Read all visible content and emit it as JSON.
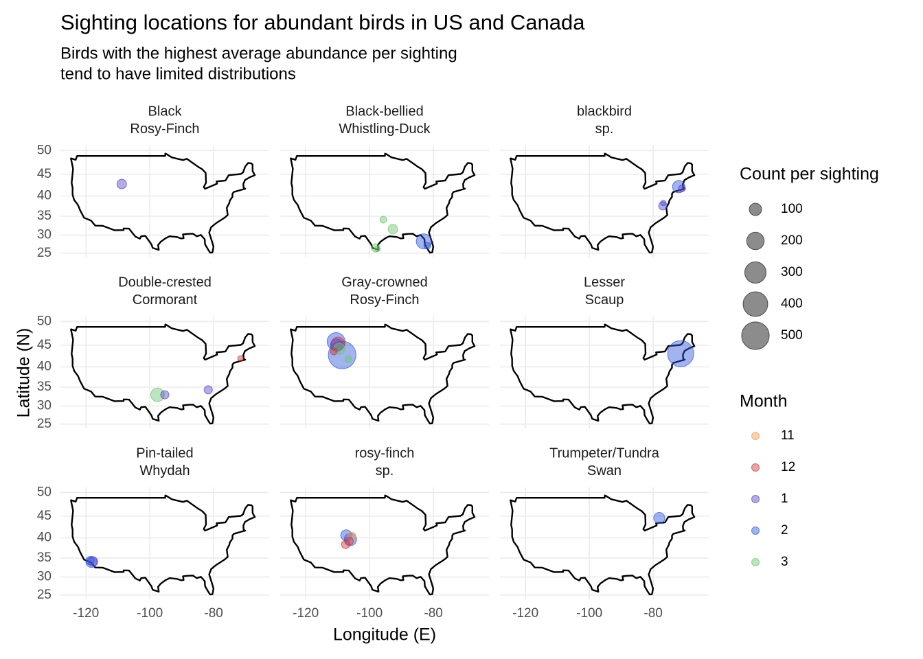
{
  "chart_data": {
    "type": "scatter",
    "title": "Sighting locations for abundant birds in US and Canada",
    "subtitle": [
      "Birds with the highest average abundance per sighting",
      "tend to have limited distributions"
    ],
    "x_label": "Longitude (E)",
    "y_label": "Latitude (N)",
    "projection": "mercator",
    "xlim": [
      -128,
      -62.6
    ],
    "ylim": [
      23.8,
      51
    ],
    "xticks": [
      -120,
      -100,
      -80
    ],
    "yticks": [
      25,
      30,
      35,
      40,
      45,
      50
    ],
    "grid": true,
    "alpha": 0.45,
    "size_legend": {
      "title": "Count per sighting",
      "values": [
        100,
        200,
        300,
        400,
        500
      ],
      "color": "#000000"
    },
    "color_legend": {
      "title": "Month",
      "entries": [
        {
          "name": "11",
          "color": "#f59a4e"
        },
        {
          "name": "12",
          "color": "#c9383a"
        },
        {
          "name": "1",
          "color": "#5a45c6"
        },
        {
          "name": "2",
          "color": "#2f58dc"
        },
        {
          "name": "3",
          "color": "#6cc56c"
        }
      ]
    },
    "facets": [
      {
        "title": [
          "Black",
          "Rosy-Finch"
        ],
        "x": [
          -108.8
        ],
        "y": [
          42.8
        ],
        "size": [
          60
        ],
        "month": [
          "1"
        ]
      },
      {
        "title": [
          "Black-bellied",
          "Whistling-Duck"
        ],
        "x": [
          -83.0,
          -81.9,
          -95.7,
          -92.7,
          -98.1,
          -97.5
        ],
        "y": [
          28.3,
          27.1,
          34.1,
          31.6,
          26.5,
          26.2
        ],
        "size": [
          150,
          30,
          31,
          60,
          45,
          20
        ],
        "month": [
          "2",
          "2",
          "3",
          "3",
          "3",
          "3"
        ]
      },
      {
        "title": [
          "blackbird",
          "sp."
        ],
        "x": [
          -72.0,
          -71.0,
          -77.0,
          -76.8
        ],
        "y": [
          42.2,
          41.8,
          37.6,
          38.3
        ],
        "size": [
          100,
          30,
          45,
          20
        ],
        "month": [
          "2",
          "1",
          "1",
          "2"
        ]
      },
      {
        "title": [
          "Double-crested",
          "Cormorant"
        ],
        "x": [
          -97.6,
          -95.3,
          -81.7,
          -71.6
        ],
        "y": [
          33.0,
          33.0,
          34.3,
          42.0
        ],
        "size": [
          120,
          45,
          45,
          20
        ],
        "month": [
          "3",
          "1",
          "1",
          "12"
        ]
      },
      {
        "title": [
          "Gray-crowned",
          "Rosy-Finch"
        ],
        "x": [
          -108.6,
          -110.5,
          -109.9,
          -110.3,
          -109.5,
          -111.2,
          -106.7
        ],
        "y": [
          42.8,
          45.8,
          45.3,
          45.0,
          44.2,
          43.6,
          41.8
        ],
        "size": [
          500,
          210,
          120,
          100,
          80,
          30,
          30
        ],
        "month": [
          "2",
          "2",
          "12",
          "1",
          "3",
          "12",
          "3"
        ]
      },
      {
        "title": [
          "Lesser",
          "Scaup"
        ],
        "x": [
          -71.4
        ],
        "y": [
          43.1
        ],
        "size": [
          450
        ],
        "month": [
          "2"
        ]
      },
      {
        "title": [
          "Pin-tailed",
          "Whydah"
        ],
        "x": [
          -118.3,
          -117.8,
          -118.7
        ],
        "y": [
          34.0,
          34.1,
          34.3
        ],
        "size": [
          80,
          60,
          45
        ],
        "month": [
          "2",
          "1",
          "2"
        ]
      },
      {
        "title": [
          "rosy-finch",
          "sp."
        ],
        "x": [
          -106.0,
          -107.3,
          -105.6,
          -107.5,
          -106.4
        ],
        "y": [
          39.6,
          40.6,
          40.4,
          38.4,
          39.2
        ],
        "size": [
          100,
          80,
          45,
          45,
          45
        ],
        "month": [
          "2",
          "2",
          "11",
          "12",
          "12"
        ]
      },
      {
        "title": [
          "Trumpeter/Tundra",
          "Swan"
        ],
        "x": [
          -78.1
        ],
        "y": [
          44.6
        ],
        "size": [
          80
        ],
        "month": [
          "2"
        ]
      }
    ]
  }
}
